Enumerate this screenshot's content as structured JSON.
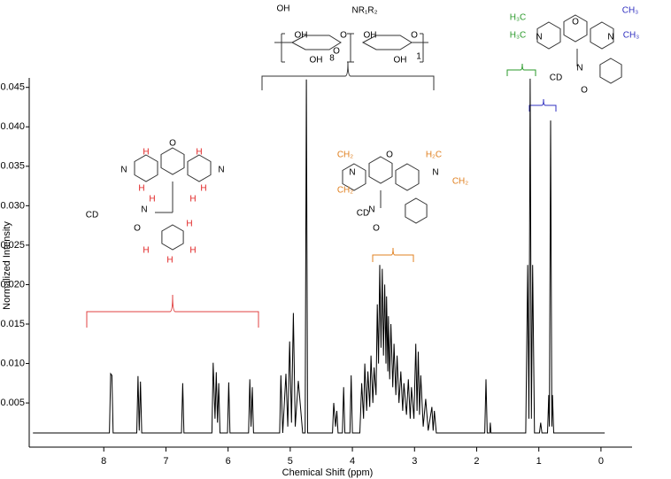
{
  "chart_data": {
    "type": "line",
    "xlabel": "Chemical Shift (ppm)",
    "ylabel": "Normalized Intensity",
    "color": "#000000",
    "xlim": [
      9.2,
      -0.5
    ],
    "ylim": [
      -0.0006,
      0.0462
    ],
    "xticks": [
      8,
      7,
      6,
      5,
      4,
      3,
      2,
      1,
      0
    ],
    "yticks": [
      0.005,
      {
        "value": 0.01,
        "label": "0.010"
      },
      0.015,
      {
        "value": 0.02,
        "label": "0.020"
      },
      0.025,
      {
        "value": 0.03,
        "label": "0.030"
      },
      0.035,
      {
        "value": 0.04,
        "label": "0.040"
      },
      0.045
    ],
    "x": [
      9.14,
      7.91,
      7.89,
      7.87,
      7.85,
      7.47,
      7.45,
      7.43,
      7.41,
      7.39,
      6.75,
      6.73,
      6.71,
      6.26,
      6.24,
      6.21,
      6.19,
      6.17,
      6.15,
      6.13,
      6.01,
      5.99,
      5.97,
      5.67,
      5.65,
      5.63,
      5.61,
      5.59,
      5.17,
      5.15,
      5.12,
      5.07,
      5.04,
      5.01,
      4.98,
      4.95,
      4.92,
      4.87,
      4.8,
      4.76,
      4.74,
      4.72,
      4.32,
      4.3,
      4.27,
      4.25,
      4.23,
      4.16,
      4.14,
      4.12,
      4.04,
      4.02,
      4.0,
      3.88,
      3.85,
      3.82,
      3.8,
      3.77,
      3.75,
      3.72,
      3.7,
      3.67,
      3.65,
      3.62,
      3.6,
      3.58,
      3.56,
      3.54,
      3.52,
      3.5,
      3.48,
      3.46,
      3.45,
      3.43,
      3.42,
      3.4,
      3.38,
      3.35,
      3.33,
      3.3,
      3.28,
      3.25,
      3.22,
      3.19,
      3.17,
      3.13,
      3.1,
      3.07,
      3.05,
      3.01,
      2.98,
      2.96,
      2.94,
      2.92,
      2.9,
      2.86,
      2.82,
      2.78,
      2.72,
      2.7,
      2.68,
      2.65,
      1.87,
      1.85,
      1.83,
      1.79,
      1.78,
      1.77,
      1.21,
      1.18,
      1.16,
      1.14,
      1.12,
      1.1,
      1.07,
      0.99,
      0.97,
      0.95,
      0.86,
      0.84,
      0.83,
      0.81,
      0.79,
      0.78,
      0.76,
      -0.06
    ],
    "values": [
      0.0012,
      0.0012,
      0.0087,
      0.0085,
      0.0012,
      0.0012,
      0.0084,
      0.0015,
      0.0077,
      0.0012,
      0.0012,
      0.0075,
      0.0012,
      0.0012,
      0.0101,
      0.003,
      0.0089,
      0.0025,
      0.0075,
      0.0012,
      0.0012,
      0.0076,
      0.0012,
      0.0012,
      0.008,
      0.002,
      0.007,
      0.0012,
      0.0012,
      0.0085,
      0.0012,
      0.0087,
      0.002,
      0.0128,
      0.0025,
      0.0164,
      0.002,
      0.0078,
      0.0012,
      0.0012,
      0.046,
      0.0012,
      0.0012,
      0.005,
      0.002,
      0.004,
      0.0012,
      0.0012,
      0.007,
      0.0012,
      0.0012,
      0.0085,
      0.0012,
      0.0012,
      0.0075,
      0.003,
      0.01,
      0.004,
      0.009,
      0.0045,
      0.011,
      0.005,
      0.0095,
      0.006,
      0.0175,
      0.01,
      0.0225,
      0.012,
      0.022,
      0.011,
      0.02,
      0.01,
      0.0185,
      0.009,
      0.016,
      0.008,
      0.015,
      0.007,
      0.0125,
      0.006,
      0.011,
      0.005,
      0.009,
      0.004,
      0.0075,
      0.0035,
      0.008,
      0.003,
      0.007,
      0.003,
      0.0125,
      0.004,
      0.0115,
      0.0035,
      0.0085,
      0.002,
      0.0055,
      0.0015,
      0.0045,
      0.0015,
      0.004,
      0.0012,
      0.0012,
      0.008,
      0.0012,
      0.0012,
      0.0025,
      0.0012,
      0.0012,
      0.0225,
      0.003,
      0.0461,
      0.003,
      0.0225,
      0.0012,
      0.0012,
      0.0025,
      0.0012,
      0.0012,
      0.006,
      0.002,
      0.0408,
      0.002,
      0.006,
      0.0012,
      0.0012
    ],
    "structures": [
      {
        "labels": [
          "OH",
          "NR₁R₂",
          "O",
          "O",
          "OH",
          "OH",
          "O",
          "8",
          "OH",
          "OH",
          "1"
        ]
      },
      {
        "labels": [
          "H₃C",
          "H₃C",
          "N",
          "N",
          "CH₃",
          "CH₃",
          "O",
          "N",
          "CD",
          "O"
        ]
      },
      {
        "labels": [
          "N",
          "N",
          "O",
          "H",
          "H",
          "H",
          "H",
          "H",
          "H",
          "N",
          "CD",
          "O",
          "H",
          "H",
          "H",
          "H"
        ]
      },
      {
        "labels": [
          "CH₂",
          "CH₂",
          "N",
          "N",
          "H₂C",
          "CH₂",
          "O",
          "N",
          "CD",
          "O"
        ]
      }
    ]
  }
}
